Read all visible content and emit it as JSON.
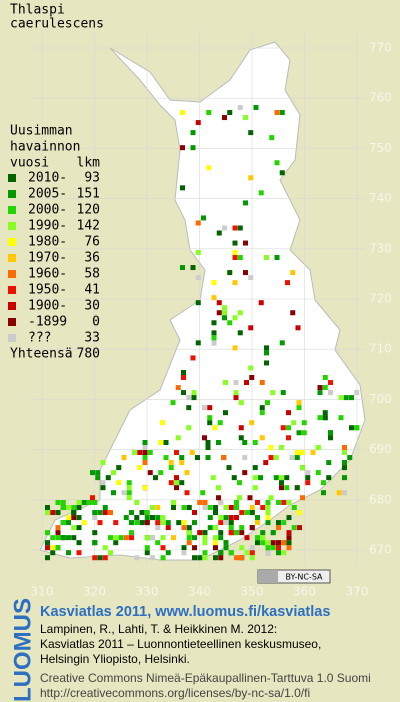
{
  "title_lines": [
    "Thlaspi",
    "caerulescens"
  ],
  "legend": {
    "heading": [
      "Uusimman",
      "havainnon",
      "vuosi"
    ],
    "count_heading": "lkm",
    "rows": [
      {
        "label": "2010-",
        "count": 93,
        "color": "#006400"
      },
      {
        "label": "2005-",
        "count": 151,
        "color": "#009a00"
      },
      {
        "label": "2000-",
        "count": 120,
        "color": "#22d400"
      },
      {
        "label": "1990-",
        "count": 142,
        "color": "#88ff22"
      },
      {
        "label": "1980-",
        "count": 76,
        "color": "#ffff00"
      },
      {
        "label": "1970-",
        "count": 36,
        "color": "#ffc800"
      },
      {
        "label": "1960-",
        "count": 58,
        "color": "#ff6a00"
      },
      {
        "label": "1950-",
        "count": 41,
        "color": "#ee1100"
      },
      {
        "label": "1900-",
        "count": 30,
        "color": "#c80000"
      },
      {
        "label": "-1899",
        "count": 0,
        "color": "#880000"
      },
      {
        "label": "???",
        "count": 33,
        "color": "#cccccc"
      }
    ],
    "total_label": "Yhteensä",
    "total": 780
  },
  "grid": {
    "y_labels": [
      770,
      760,
      750,
      740,
      730,
      720,
      710,
      700,
      690,
      680,
      670
    ],
    "x_labels": [
      310,
      320,
      330,
      340,
      350,
      360,
      370
    ]
  },
  "license_badge": "BY-NC-SA",
  "logo": "LUOMUS",
  "footer": {
    "headline": "Kasviatlas 2011, www.luomus.fi/kasviatlas",
    "citation": [
      "Lampinen, R., Lahti, T. & Heikkinen M. 2012:",
      "Kasviatlas 2011 – Luonnontieteellinen keskusmuseo,",
      "Helsingin Yliopisto, Helsinki."
    ],
    "license": [
      "Creative Commons Nimeä-Epäkaupallinen-Tarttuva 1.0 Suomi",
      "http://creativecommons.org/licenses/by-nc-sa/1.0/fi"
    ]
  }
}
